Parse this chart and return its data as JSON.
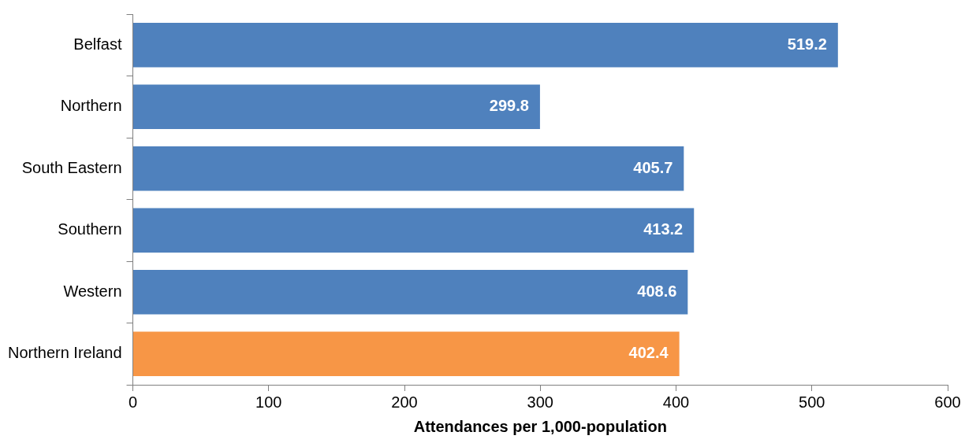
{
  "chart_data": {
    "type": "bar",
    "orientation": "horizontal",
    "xlabel": "Attendances per 1,000-population",
    "categories": [
      "Belfast",
      "Northern",
      "South Eastern",
      "Southern",
      "Western",
      "Northern Ireland"
    ],
    "values": [
      519.2,
      299.8,
      405.7,
      413.2,
      408.6,
      402.4
    ],
    "colors": [
      "#4f81bd",
      "#4f81bd",
      "#4f81bd",
      "#4f81bd",
      "#4f81bd",
      "#f79646"
    ],
    "xlim": [
      0,
      600
    ],
    "xticks": [
      0,
      100,
      200,
      300,
      400,
      500,
      600
    ],
    "data_labels": true,
    "grid": false,
    "legend": false
  }
}
